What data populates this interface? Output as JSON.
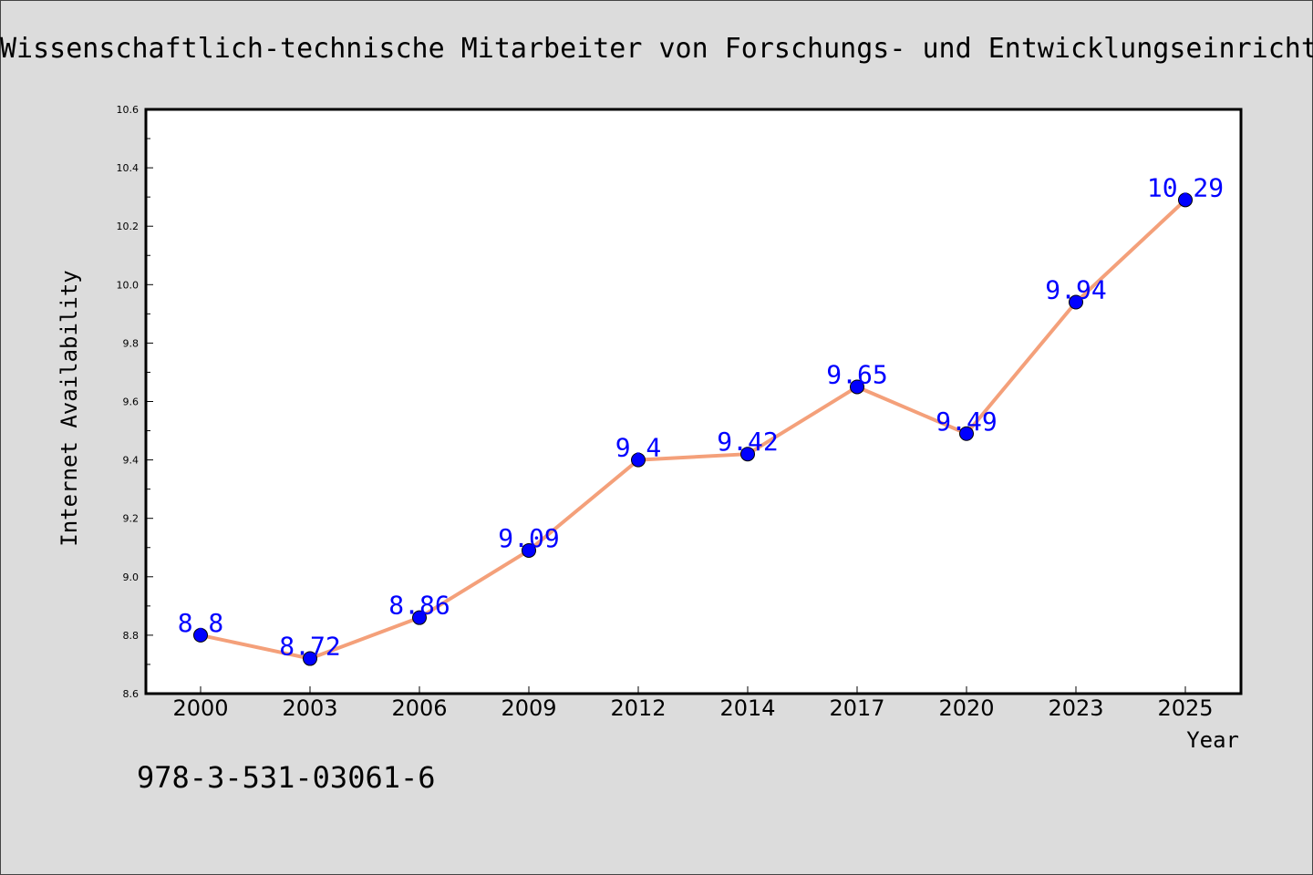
{
  "chart_data": {
    "type": "line",
    "title": "Wissenschaftlich-technische Mitarbeiter von Forschungs- und Entwicklungseinrichtungen",
    "xlabel": "Year",
    "ylabel": "Internet Availability",
    "categories": [
      "2000",
      "2003",
      "2006",
      "2009",
      "2012",
      "2014",
      "2017",
      "2020",
      "2023",
      "2025"
    ],
    "values": [
      8.8,
      8.72,
      8.86,
      9.09,
      9.4,
      9.42,
      9.65,
      9.49,
      9.94,
      10.29
    ],
    "data_labels": [
      "8.8",
      "8.72",
      "8.86",
      "9.09",
      "9.4",
      "9.42",
      "9.65",
      "9.49",
      "9.94",
      "10.29"
    ],
    "ylim": [
      8.6,
      10.6
    ],
    "yticks": [
      8.6,
      8.8,
      9.0,
      9.2,
      9.4,
      9.6,
      9.8,
      10.0,
      10.2,
      10.4,
      10.6
    ],
    "ytick_labels": [
      "8.6",
      "8.8",
      "9.0",
      "9.2",
      "9.4",
      "9.6",
      "9.8",
      "10.0",
      "10.2",
      "10.4",
      "10.6"
    ],
    "grid": false,
    "legend": "none",
    "colors": {
      "line": "#f4a07a",
      "marker": "#0000ff",
      "label": "#0000ff",
      "background": "#dcdcdc",
      "plot_background": "#ffffff"
    }
  },
  "footer": {
    "isbn": "978-3-531-03061-6"
  }
}
